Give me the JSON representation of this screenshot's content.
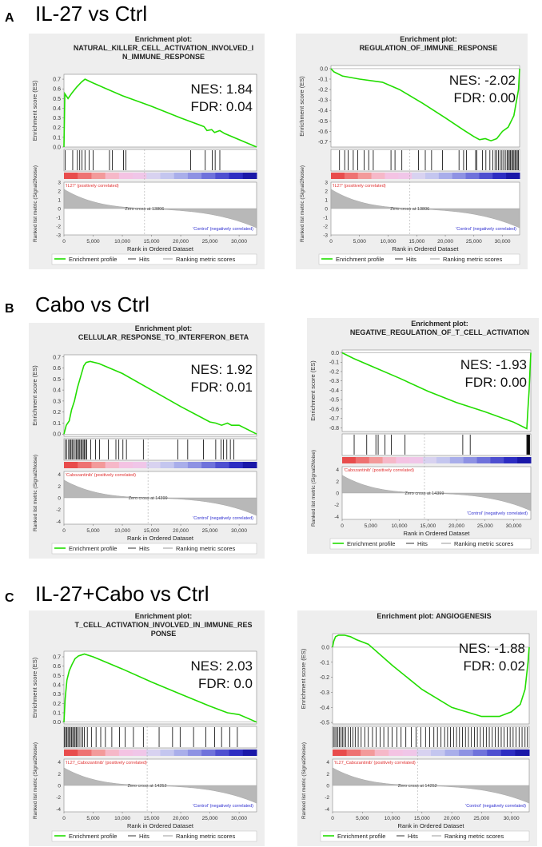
{
  "sections": [
    {
      "label": "A",
      "title": "IL-27 vs Ctrl"
    },
    {
      "label": "B",
      "title": "Cabo vs Ctrl"
    },
    {
      "label": "C",
      "title": "IL-27+Cabo vs Ctrl"
    }
  ],
  "common": {
    "es_ylabel": "Enrichment score (ES)",
    "rank_ylabel": "Ranked list metric (Signal2Noise)",
    "xlabel": "Rank in Ordered Dataset",
    "control_label": "'Control' (negatively correlated)",
    "legend": [
      "Enrichment profile",
      "Hits",
      "Ranking metric scores"
    ],
    "colors": {
      "profile": "#22dd00",
      "hits": "#000000",
      "metric": "#9a9a9a",
      "panel_bg": "#eeeeee"
    }
  },
  "chart_data": [
    {
      "type": "line",
      "panel": "A-left",
      "title": [
        "Enrichment plot:",
        "NATURAL_KILLER_CELL_ACTIVATION_INVOLVED_I",
        "N_IMMUNE_RESPONSE"
      ],
      "nes_text": "NES: 1.84",
      "fdr_text": "FDR: 0.04",
      "ylim": [
        0.0,
        0.75
      ],
      "yticks": [
        "0.0",
        "0.1",
        "0.2",
        "0.3",
        "0.4",
        "0.5",
        "0.6",
        "0.7"
      ],
      "ytick_values": [
        0.0,
        0.1,
        0.2,
        0.3,
        0.4,
        0.5,
        0.6,
        0.7
      ],
      "xmax": 33000,
      "xticks": [
        "0",
        "5,000",
        "10,000",
        "15,000",
        "20,000",
        "25,000",
        "30,000"
      ],
      "x": [
        0,
        150,
        700,
        1400,
        2200,
        3000,
        3600,
        5000,
        10000,
        15000,
        20000,
        24000,
        24500,
        25300,
        25800,
        26700,
        27500,
        33000
      ],
      "es": [
        0.0,
        0.55,
        0.5,
        0.56,
        0.62,
        0.67,
        0.7,
        0.66,
        0.53,
        0.42,
        0.3,
        0.21,
        0.17,
        0.18,
        0.15,
        0.17,
        0.14,
        0.0
      ],
      "hits": [
        200,
        1500,
        2300,
        2700,
        3100,
        3600,
        4300,
        5000,
        7800,
        8300,
        10200,
        10600,
        21700,
        24200,
        25400,
        25900,
        26700
      ],
      "zero_cross": "Zero cross at 13806",
      "zero_x": 13806,
      "pos_label": "'IL27' (positively correlated)",
      "metric_range": [
        -3,
        3
      ],
      "metric_ticks": [
        "3",
        "2",
        "1",
        "0",
        "-1",
        "-2",
        "-3"
      ],
      "metric_tick_values": [
        3,
        2,
        1,
        0,
        -1,
        -2,
        -3
      ]
    },
    {
      "type": "line",
      "panel": "A-right",
      "title": [
        "Enrichment plot:",
        "REGULATION_OF_IMMUNE_RESPONSE"
      ],
      "nes_text": "NES: -2.02",
      "fdr_text": "FDR: 0.00",
      "ylim": [
        -0.75,
        0.03
      ],
      "yticks": [
        "0.0",
        "-0.1",
        "-0.2",
        "-0.3",
        "-0.4",
        "-0.5",
        "-0.6",
        "-0.7"
      ],
      "ytick_values": [
        0.0,
        -0.1,
        -0.2,
        -0.3,
        -0.4,
        -0.5,
        -0.6,
        -0.7
      ],
      "xmax": 33000,
      "xticks": [
        "0",
        "5,000",
        "10,000",
        "15,000",
        "20,000",
        "25,000",
        "30,000"
      ],
      "x": [
        0,
        500,
        2000,
        5000,
        9000,
        12000,
        16000,
        20000,
        23000,
        25000,
        26000,
        27000,
        28000,
        29000,
        30000,
        31000,
        32000,
        32800,
        33000
      ],
      "es": [
        0.0,
        -0.03,
        -0.07,
        -0.1,
        -0.13,
        -0.2,
        -0.33,
        -0.47,
        -0.58,
        -0.65,
        -0.68,
        -0.67,
        -0.69,
        -0.67,
        -0.6,
        -0.56,
        -0.45,
        -0.2,
        0.0
      ],
      "hits": [
        1500,
        2400,
        3000,
        3900,
        4700,
        5800,
        6600,
        7400,
        10500,
        11200,
        12400,
        15300,
        16500,
        17600,
        19500,
        22400,
        23200,
        23700,
        25300,
        25500,
        26500,
        27100,
        27800,
        28300,
        28700,
        29000,
        29300,
        29600,
        29900,
        30200,
        30500,
        30800,
        31000,
        31200,
        31400,
        31600,
        31800,
        32000,
        32200,
        32400,
        32600,
        32800
      ],
      "zero_cross": "Zero cross at 13806",
      "zero_x": 13806,
      "pos_label": "'IL27' (positively correlated)",
      "metric_range": [
        -3,
        3
      ],
      "metric_ticks": [
        "3",
        "2",
        "1",
        "0",
        "-1",
        "-2",
        "-3"
      ],
      "metric_tick_values": [
        3,
        2,
        1,
        0,
        -1,
        -2,
        -3
      ]
    },
    {
      "type": "line",
      "panel": "B-left",
      "title": [
        "Enrichment plot:",
        "CELLULAR_RESPONSE_TO_INTERFERON_BETA"
      ],
      "nes_text": "NES: 1.92",
      "fdr_text": "FDR: 0.01",
      "ylim": [
        -0.02,
        0.72
      ],
      "yticks": [
        "0.0",
        "0.1",
        "0.2",
        "0.3",
        "0.4",
        "0.5",
        "0.6",
        "0.7"
      ],
      "ytick_values": [
        0.0,
        0.1,
        0.2,
        0.3,
        0.4,
        0.5,
        0.6,
        0.7
      ],
      "xmax": 33000,
      "xticks": [
        "0",
        "5,000",
        "10,000",
        "15,000",
        "20,000",
        "25,000",
        "30,000"
      ],
      "x": [
        0,
        400,
        900,
        1300,
        1800,
        2300,
        2900,
        3400,
        3800,
        4500,
        6000,
        10000,
        15000,
        20000,
        25000,
        26000,
        27000,
        28000,
        28700,
        30000,
        33000
      ],
      "es": [
        0.0,
        0.08,
        0.12,
        0.22,
        0.3,
        0.42,
        0.53,
        0.62,
        0.65,
        0.66,
        0.64,
        0.55,
        0.4,
        0.25,
        0.11,
        0.1,
        0.08,
        0.1,
        0.08,
        0.08,
        0.0
      ],
      "hits": [
        200,
        500,
        800,
        1000,
        1200,
        1400,
        1600,
        1900,
        2100,
        2300,
        2500,
        2700,
        2900,
        3100,
        3300,
        3500,
        3700,
        3900,
        4600,
        5400,
        6100,
        7600,
        8900,
        9400,
        10100,
        10700,
        13600,
        19500,
        21200,
        23900,
        26000,
        26900,
        27300,
        27900,
        28500,
        29100
      ],
      "zero_cross": "Zero cross at 14399",
      "zero_x": 14399,
      "pos_label": "'Cabozantinib' (positively correlated)",
      "metric_range": [
        -4.5,
        4.5
      ],
      "metric_ticks": [
        "4",
        "2",
        "0",
        "-2",
        "-4"
      ],
      "metric_tick_values": [
        4,
        2,
        0,
        -2,
        -4
      ]
    },
    {
      "type": "line",
      "panel": "B-right",
      "title": [
        "Enrichment plot:",
        "NEGATIVE_REGULATION_OF_T_CELL_ACTIVATION"
      ],
      "nes_text": "NES: -1.93",
      "fdr_text": "FDR: 0.00",
      "ylim": [
        -0.84,
        0.03
      ],
      "yticks": [
        "0.0",
        "-0.1",
        "-0.2",
        "-0.3",
        "-0.4",
        "-0.5",
        "-0.6",
        "-0.7",
        "-0.8"
      ],
      "ytick_values": [
        0.0,
        -0.1,
        -0.2,
        -0.3,
        -0.4,
        -0.5,
        -0.6,
        -0.7,
        -0.8
      ],
      "xmax": 33000,
      "xticks": [
        "0",
        "5,000",
        "10,000",
        "15,000",
        "20,000",
        "25,000",
        "30,000"
      ],
      "x": [
        0,
        2000,
        5000,
        10000,
        15000,
        20000,
        25000,
        30000,
        32300,
        32500,
        32700,
        32850,
        33000
      ],
      "es": [
        0.0,
        -0.06,
        -0.14,
        -0.27,
        -0.41,
        -0.53,
        -0.63,
        -0.74,
        -0.81,
        -0.6,
        -0.4,
        -0.2,
        0.0
      ],
      "hits": [
        2100,
        4300,
        5900,
        6300,
        7500,
        8600,
        11000,
        21100,
        22400,
        32300,
        32400,
        32500,
        32600,
        32700,
        32800
      ],
      "zero_cross": "Zero cross at 14399",
      "zero_x": 14399,
      "pos_label": "'Cabozantinib' (positively correlated)",
      "metric_range": [
        -4.5,
        4.5
      ],
      "metric_ticks": [
        "4",
        "2",
        "0",
        "-2",
        "-4"
      ],
      "metric_tick_values": [
        4,
        2,
        0,
        -2,
        -4
      ]
    },
    {
      "type": "line",
      "panel": "C-left",
      "title": [
        "Enrichment plot:",
        "T_CELL_ACTIVATION_INVOLVED_IN_IMMUNE_RES",
        "PONSE"
      ],
      "nes_text": "NES: 2.03",
      "fdr_text": "FDR: 0.0",
      "ylim": [
        -0.02,
        0.76
      ],
      "yticks": [
        "0.0",
        "0.1",
        "0.2",
        "0.3",
        "0.4",
        "0.5",
        "0.6",
        "0.7"
      ],
      "ytick_values": [
        0.0,
        0.1,
        0.2,
        0.3,
        0.4,
        0.5,
        0.6,
        0.7
      ],
      "xmax": 33000,
      "xticks": [
        "0",
        "5,000",
        "10,000",
        "15,000",
        "20,000",
        "25,000",
        "30,000"
      ],
      "x": [
        0,
        200,
        500,
        900,
        1400,
        1900,
        2500,
        3000,
        3500,
        5000,
        10000,
        15000,
        20000,
        25000,
        28000,
        30000,
        33000
      ],
      "es": [
        0.0,
        0.25,
        0.45,
        0.55,
        0.62,
        0.68,
        0.71,
        0.72,
        0.73,
        0.7,
        0.57,
        0.43,
        0.3,
        0.17,
        0.1,
        0.08,
        0.0
      ],
      "hits": [
        100,
        300,
        500,
        700,
        900,
        1100,
        1300,
        1500,
        1700,
        1900,
        2100,
        2300,
        2600,
        2900,
        3200,
        3500,
        4000,
        4700,
        5500,
        6300,
        7100,
        8200,
        9500,
        10500,
        11900,
        13600,
        16300,
        18600,
        19900,
        22200,
        24300,
        25800,
        27000,
        28400,
        29700
      ],
      "zero_cross": "Zero cross at 14252",
      "zero_x": 14252,
      "pos_label": "'IL27_Cabozantinib' (positively correlated)",
      "metric_range": [
        -4.5,
        4.5
      ],
      "metric_ticks": [
        "4",
        "2",
        "0",
        "-2",
        "-4"
      ],
      "metric_tick_values": [
        4,
        2,
        0,
        -2,
        -4
      ]
    },
    {
      "type": "line",
      "panel": "C-right",
      "title": [
        "Enrichment plot: ANGIOGENESIS"
      ],
      "nes_text": "NES: -1.88",
      "fdr_text": "FDR: 0.02",
      "ylim": [
        -0.51,
        0.09
      ],
      "yticks": [
        "0.0",
        "-0.1",
        "-0.2",
        "-0.3",
        "-0.4",
        "-0.5"
      ],
      "ytick_values": [
        0.0,
        -0.1,
        -0.2,
        -0.3,
        -0.4,
        -0.5
      ],
      "xmax": 33000,
      "xticks": [
        "0",
        "5,000",
        "10,000",
        "15,000",
        "20,000",
        "25,000",
        "30,000"
      ],
      "x": [
        0,
        200,
        500,
        1000,
        2000,
        3000,
        4000,
        6000,
        10000,
        15000,
        20000,
        25000,
        28000,
        30000,
        31500,
        32300,
        32800,
        33000
      ],
      "es": [
        0.0,
        0.04,
        0.07,
        0.08,
        0.08,
        0.07,
        0.05,
        0.02,
        -0.12,
        -0.28,
        -0.4,
        -0.46,
        -0.46,
        -0.43,
        -0.38,
        -0.28,
        -0.1,
        0.0
      ],
      "hits": [
        150,
        400,
        650,
        900,
        1150,
        1400,
        1650,
        1900,
        2200,
        2600,
        3000,
        3400,
        3800,
        4300,
        4800,
        5400,
        6000,
        6700,
        7300,
        8000,
        8600,
        9300,
        10000,
        10800,
        11500,
        12300,
        13200,
        14000,
        14800,
        15600,
        16300,
        17000,
        17600,
        18200,
        18800,
        19300,
        19800,
        20300,
        20800,
        21300,
        21800,
        22300,
        22800,
        23300,
        23800,
        24300,
        24800,
        25300,
        25800,
        26300,
        26800,
        27300,
        27800,
        28300,
        28800,
        29300,
        29800,
        30300,
        30800,
        31300,
        31800,
        32300,
        32700
      ],
      "zero_cross": "Zero cross at 14252",
      "zero_x": 14252,
      "pos_label": "'IL27_Cabozantinib' (positively correlated)",
      "metric_range": [
        -4.5,
        4.5
      ],
      "metric_ticks": [
        "4",
        "2",
        "0",
        "-2",
        "-4"
      ],
      "metric_tick_values": [
        4,
        2,
        0,
        -2,
        -4
      ]
    }
  ]
}
